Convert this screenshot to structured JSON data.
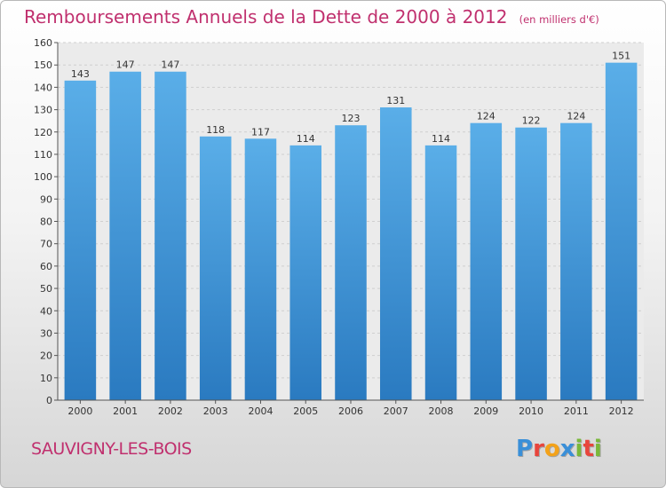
{
  "chart_data": {
    "type": "bar",
    "title": "Remboursements Annuels de la Dette de 2000 à 2012",
    "subtitle": "(en milliers d'€)",
    "categories": [
      "2000",
      "2001",
      "2002",
      "2003",
      "2004",
      "2005",
      "2006",
      "2007",
      "2008",
      "2009",
      "2010",
      "2011",
      "2012"
    ],
    "values": [
      143,
      147,
      147,
      118,
      117,
      114,
      123,
      131,
      114,
      124,
      122,
      124,
      151
    ],
    "ylim": [
      0,
      160
    ],
    "yticks": [
      0,
      10,
      20,
      30,
      40,
      50,
      60,
      70,
      80,
      90,
      100,
      110,
      120,
      130,
      140,
      150,
      160
    ],
    "grid": true,
    "legend": "none"
  },
  "commune": "SAUVIGNY-LES-BOIS",
  "logo": {
    "text": "Proxiti",
    "letters": [
      {
        "char": "P",
        "color": "#3a8fd8"
      },
      {
        "char": "r",
        "color": "#e8453c"
      },
      {
        "char": "o",
        "color": "#f3a21a"
      },
      {
        "char": "x",
        "color": "#3a8fd8"
      },
      {
        "char": "i",
        "color": "#7ab83a"
      },
      {
        "char": "t",
        "color": "#e8453c"
      },
      {
        "char": "i",
        "color": "#7ab83a"
      }
    ]
  },
  "colors": {
    "bar_top": "#5aaee8",
    "bar_bottom": "#2a7ac0",
    "title": "#c0306e",
    "grid": "#cfcfcf"
  }
}
